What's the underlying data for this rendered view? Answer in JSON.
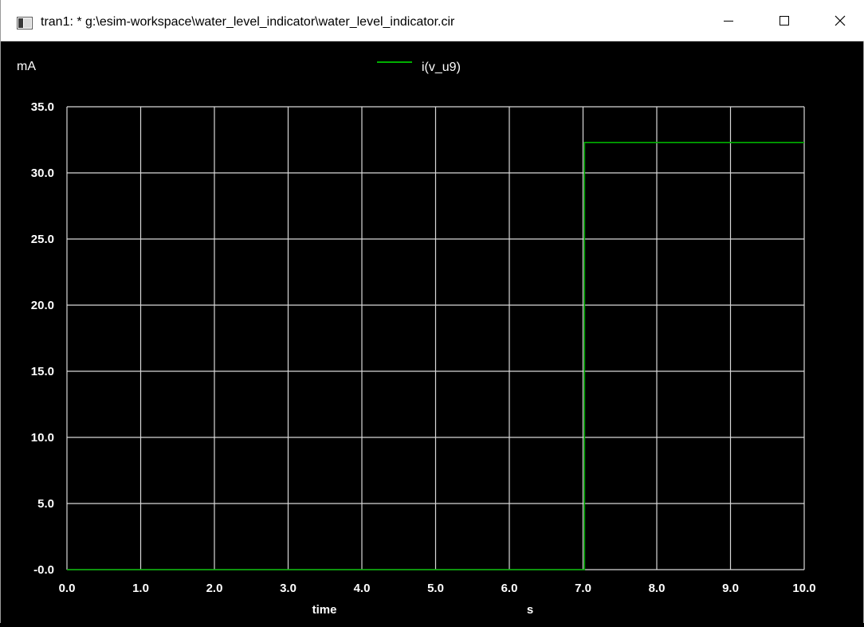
{
  "window": {
    "title": "tran1: * g:\\esim-workspace\\water_level_indicator\\water_level_indicator.cir",
    "icon": "plot-window-icon",
    "controls": {
      "minimize_icon": "minimize-icon",
      "maximize_icon": "maximize-icon",
      "close_icon": "close-icon"
    }
  },
  "colors": {
    "background": "#000000",
    "grid": "#d8d8d8",
    "text": "#ffffff",
    "series": "#00b000"
  },
  "chart_data": {
    "type": "line",
    "y_unit_label": "mA",
    "xlabel": "time",
    "x_unit_label": "s",
    "xlim": [
      0.0,
      10.0
    ],
    "ylim": [
      0.0,
      35.0
    ],
    "x_ticks": [
      "0.0",
      "1.0",
      "2.0",
      "3.0",
      "4.0",
      "5.0",
      "6.0",
      "7.0",
      "8.0",
      "9.0",
      "10.0"
    ],
    "y_ticks": [
      "-0.0",
      "5.0",
      "10.0",
      "15.0",
      "20.0",
      "25.0",
      "30.0",
      "35.0"
    ],
    "grid": true,
    "legend_position": "top-center",
    "series": [
      {
        "name": "i(v_u9)",
        "color": "#00b000",
        "x": [
          0.0,
          7.02,
          7.02,
          10.0
        ],
        "y": [
          0.0,
          0.0,
          32.3,
          32.3
        ]
      }
    ]
  }
}
